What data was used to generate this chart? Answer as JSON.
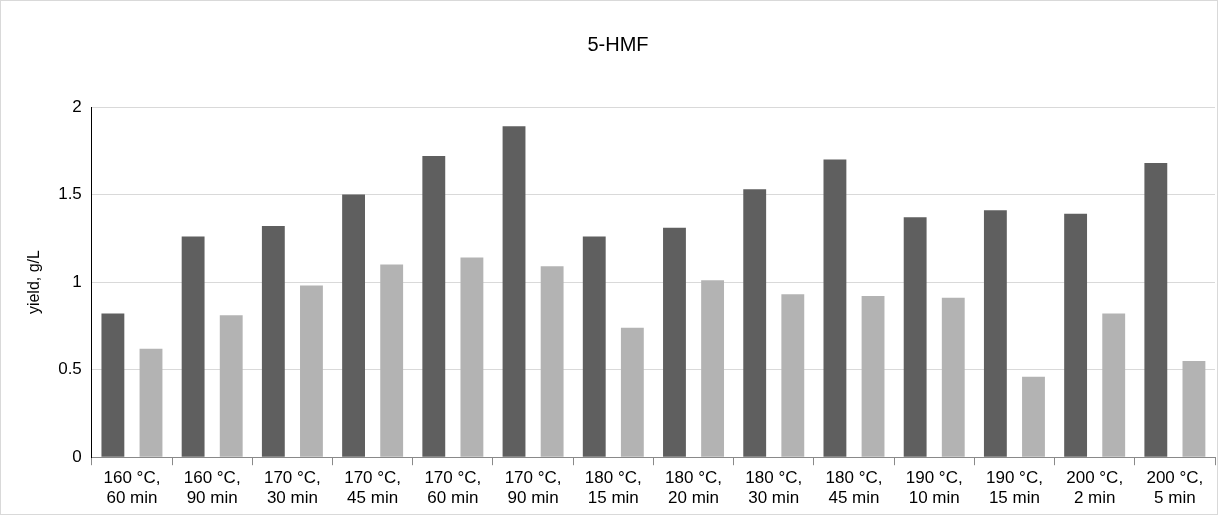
{
  "chart_data": {
    "type": "bar",
    "title": "5-HMF",
    "ylabel": "yield, g/L",
    "categories": [
      "160 °C,\n60 min",
      "160 °C,\n90 min",
      "170 °C,\n30 min",
      "170 °C,\n45 min",
      "170 °C,\n60 min",
      "170 °C,\n90 min",
      "180 °C,\n15 min",
      "180 °C,\n20 min",
      "180 °C,\n30 min",
      "180 °C,\n45 min",
      "190 °C,\n10 min",
      "190 °C,\n15 min",
      "200 °C,\n2 min",
      "200 °C,\n5 min"
    ],
    "series": [
      {
        "color": "#5f5f5f",
        "values": [
          0.82,
          1.26,
          1.32,
          1.5,
          1.72,
          1.89,
          1.26,
          1.31,
          1.53,
          1.7,
          1.37,
          1.41,
          1.39,
          1.68
        ]
      },
      {
        "color": "#b3b3b3",
        "values": [
          0.62,
          0.81,
          0.98,
          1.1,
          1.14,
          1.09,
          0.74,
          1.01,
          0.93,
          0.92,
          0.91,
          0.46,
          0.82,
          0.55
        ]
      }
    ],
    "ylim": [
      0,
      2
    ],
    "yticks": [
      0,
      0.5,
      1,
      1.5,
      2
    ],
    "grid": "y",
    "legend": false
  }
}
